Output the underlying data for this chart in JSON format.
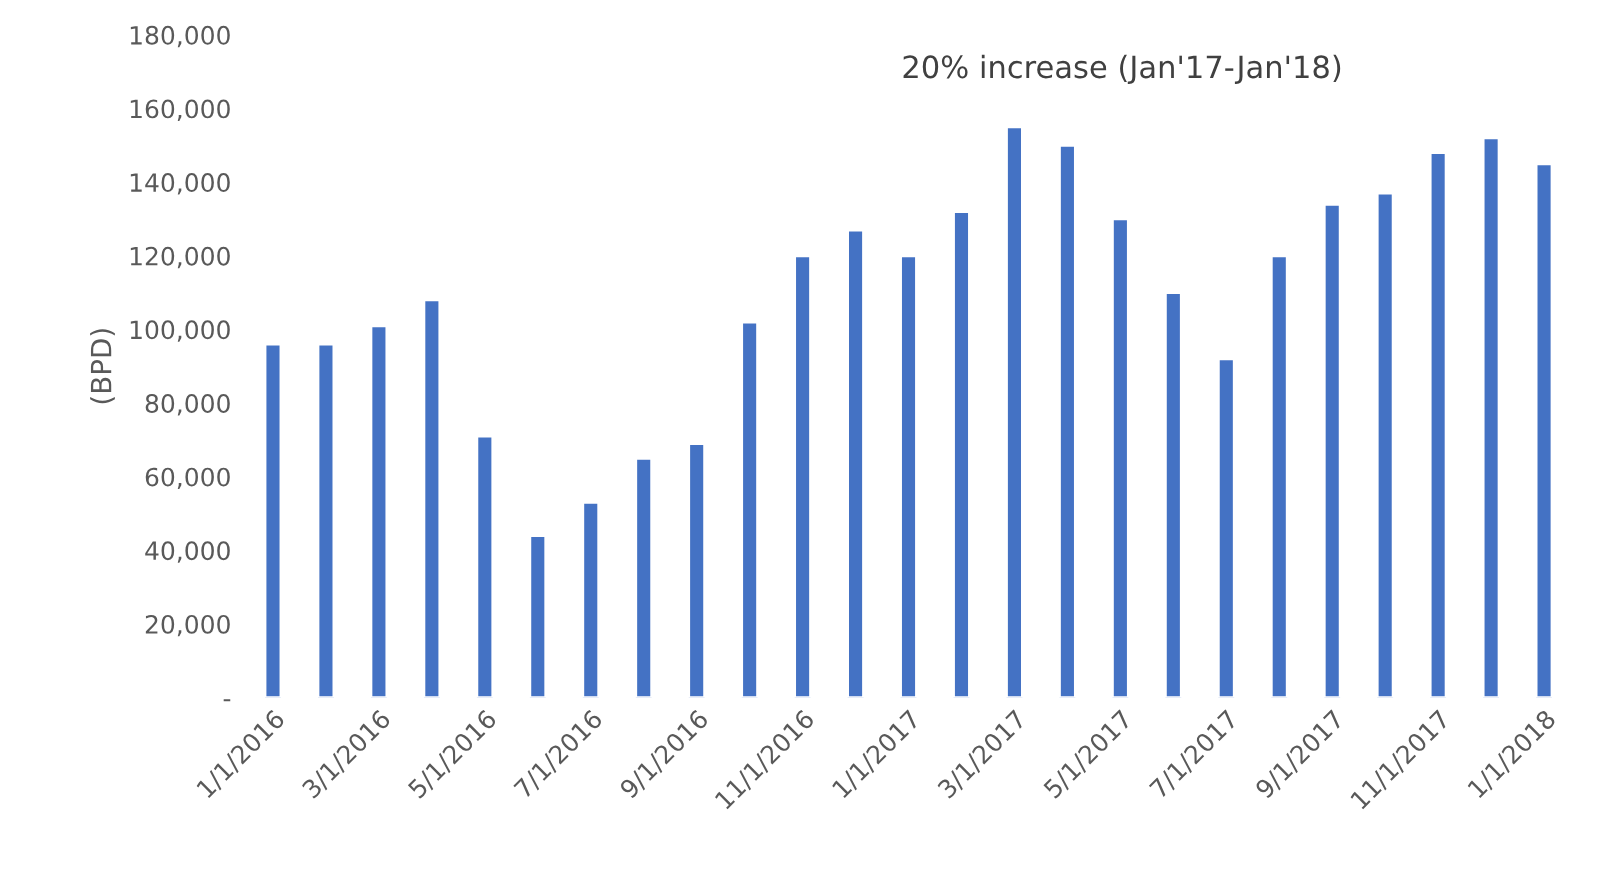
{
  "chart_data": {
    "type": "bar",
    "ylabel": "(BPD)",
    "categories": [
      "1/1/2016",
      null,
      "3/1/2016",
      null,
      "5/1/2016",
      null,
      "7/1/2016",
      null,
      "9/1/2016",
      null,
      "11/1/2016",
      null,
      "1/1/2017",
      null,
      "3/1/2017",
      null,
      "5/1/2017",
      null,
      "7/1/2017",
      null,
      "9/1/2017",
      null,
      "11/1/2017",
      null,
      "1/1/2018"
    ],
    "values": [
      96000,
      96000,
      101000,
      108000,
      71000,
      44000,
      53000,
      65000,
      69000,
      102000,
      120000,
      127000,
      120000,
      132000,
      155000,
      150000,
      130000,
      110000,
      92000,
      120000,
      134000,
      137000,
      148000,
      152000,
      145000
    ],
    "color": "#4472c4",
    "ylim": [
      0,
      180000
    ],
    "yticks": [
      {
        "value": 0,
        "label": "-"
      },
      {
        "value": 20000,
        "label": "20,000"
      },
      {
        "value": 40000,
        "label": "40,000"
      },
      {
        "value": 60000,
        "label": "60,000"
      },
      {
        "value": 80000,
        "label": "80,000"
      },
      {
        "value": 100000,
        "label": "100,000"
      },
      {
        "value": 120000,
        "label": "120,000"
      },
      {
        "value": 140000,
        "label": "140,000"
      },
      {
        "value": 160000,
        "label": "160,000"
      },
      {
        "value": 180000,
        "label": "180,000"
      }
    ],
    "annotations": [
      "20% increase (Jan'17-Jan'18)"
    ],
    "grid": false,
    "legend": false
  }
}
